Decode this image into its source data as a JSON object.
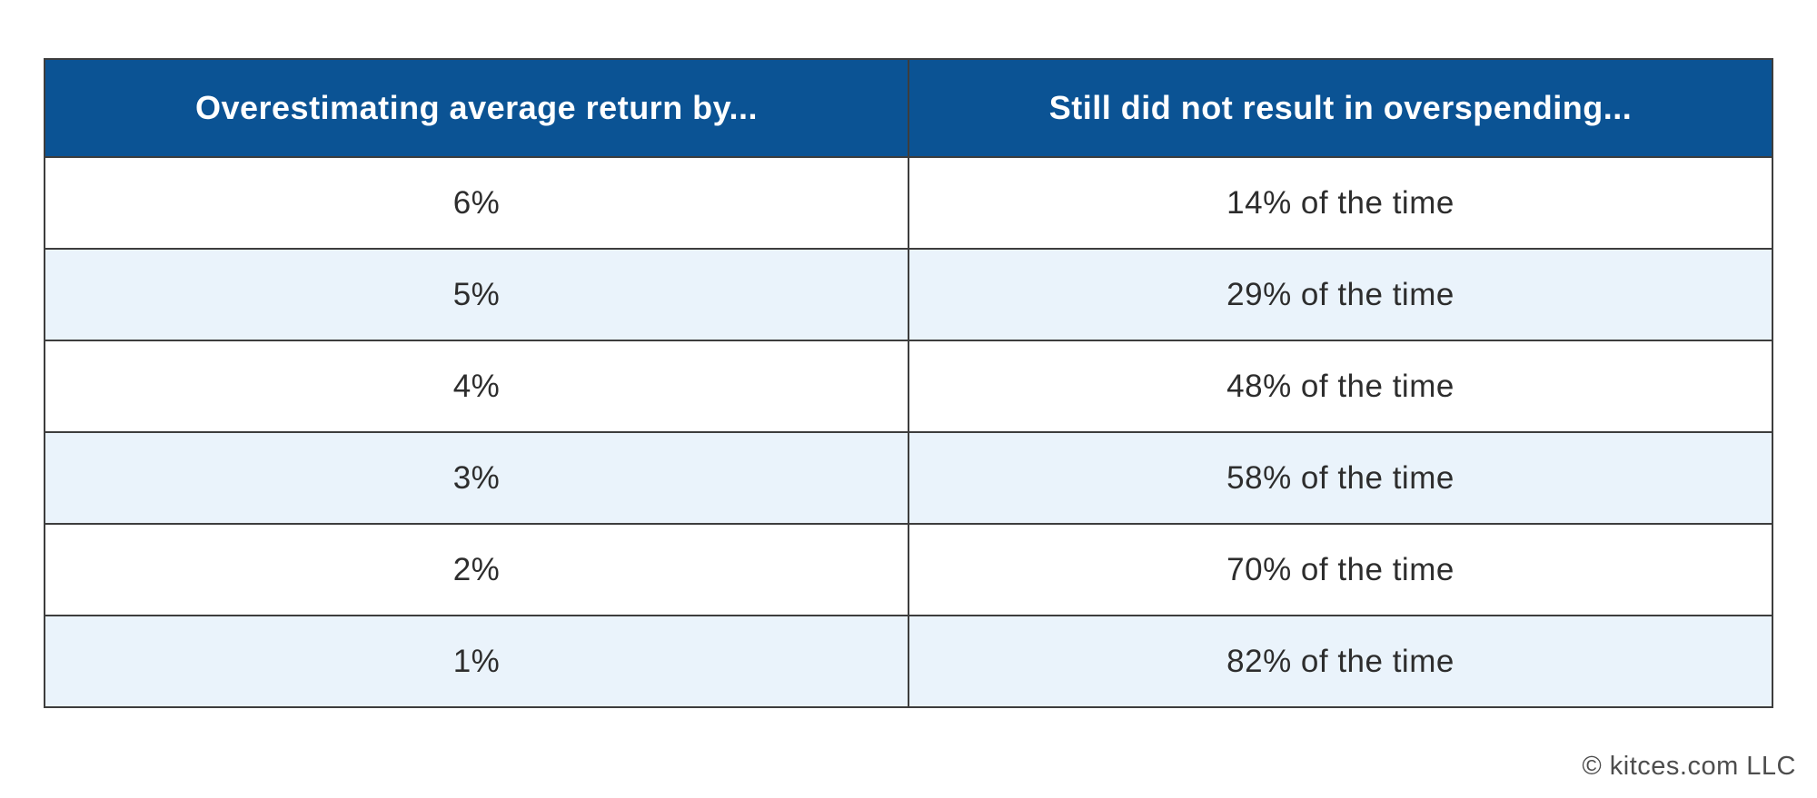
{
  "table": {
    "columns": [
      {
        "label": "Overestimating average return by..."
      },
      {
        "label": "Still did not result in overspending..."
      }
    ],
    "rows": [
      {
        "left": "6%",
        "right": "14% of the time"
      },
      {
        "left": "5%",
        "right": "29% of the time"
      },
      {
        "left": "4%",
        "right": "48% of the time"
      },
      {
        "left": "3%",
        "right": "58% of the time"
      },
      {
        "left": "2%",
        "right": "70% of the time"
      },
      {
        "left": "1%",
        "right": "82% of the time"
      }
    ]
  },
  "footer": {
    "copyright": "© kitces.com LLC"
  },
  "colors": {
    "header_bg": "#0b5394",
    "header_text": "#ffffff",
    "row_bg": "#ffffff",
    "row_alt_bg": "#eaf3fb",
    "border": "#3d3d3d",
    "body_text": "#2d2d2d",
    "footer_text": "#4d4d4d"
  },
  "chart_data": {
    "type": "table",
    "title": "",
    "columns": [
      "Overestimating average return by...",
      "Still did not result in overspending..."
    ],
    "categories": [
      "6%",
      "5%",
      "4%",
      "3%",
      "2%",
      "1%"
    ],
    "values_pct_of_time_not_overspending": [
      14,
      29,
      48,
      58,
      70,
      82
    ],
    "rows": [
      [
        "6%",
        "14% of the time"
      ],
      [
        "5%",
        "29% of the time"
      ],
      [
        "4%",
        "48% of the time"
      ],
      [
        "3%",
        "58% of the time"
      ],
      [
        "2%",
        "70% of the time"
      ],
      [
        "1%",
        "82% of the time"
      ]
    ],
    "source_note": "© kitces.com LLC"
  }
}
